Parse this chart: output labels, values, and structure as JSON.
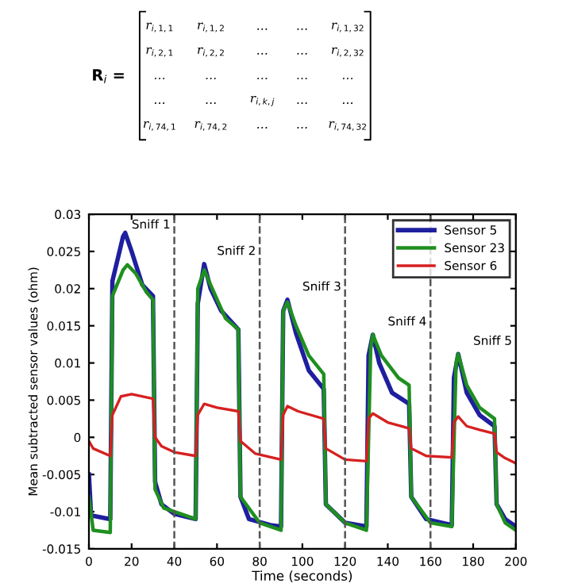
{
  "chart_data": {
    "type": "line",
    "xlabel": "Time (seconds)",
    "ylabel": "Mean subtracted sensor values (ohm)",
    "xlim": [
      0,
      200
    ],
    "xticks": [
      0,
      20,
      40,
      60,
      80,
      100,
      120,
      140,
      160,
      180,
      200
    ],
    "ylim": [
      -0.015,
      0.03
    ],
    "yticks": [
      -0.015,
      -0.01,
      -0.005,
      0,
      0.005,
      0.01,
      0.015,
      0.02,
      0.025,
      0.03
    ],
    "grid": false,
    "legend": "top right",
    "line_style": "solid",
    "series": [
      {
        "name": "Sensor 5",
        "color": "#1f1f9f",
        "x": [
          0,
          1,
          10,
          11,
          16,
          17,
          20,
          25,
          30,
          31,
          34,
          40,
          50,
          51,
          54,
          57,
          62,
          70,
          71,
          75,
          85,
          90,
          91,
          93,
          97,
          103,
          110,
          111,
          120,
          130,
          131,
          133,
          136,
          142,
          150,
          151,
          158,
          170,
          171,
          173,
          177,
          183,
          190,
          191,
          195,
          200
        ],
        "values": [
          -0.005,
          -0.0105,
          -0.011,
          0.021,
          0.027,
          0.0275,
          0.025,
          0.0205,
          0.019,
          -0.006,
          -0.009,
          -0.0103,
          -0.011,
          0.018,
          0.0233,
          0.02,
          0.017,
          0.0145,
          -0.008,
          -0.011,
          -0.0118,
          -0.012,
          0.017,
          0.0185,
          0.014,
          0.009,
          0.0065,
          -0.009,
          -0.0115,
          -0.012,
          0.011,
          0.0138,
          0.01,
          0.006,
          0.0045,
          -0.008,
          -0.011,
          -0.0118,
          0.008,
          0.0112,
          0.006,
          0.003,
          0.0015,
          -0.009,
          -0.011,
          -0.012
        ]
      },
      {
        "name": "Sensor 23",
        "color": "#1f8f1f",
        "x": [
          0,
          2,
          10,
          11,
          16,
          18,
          22,
          27,
          30,
          31,
          35,
          45,
          50,
          51,
          54,
          57,
          64,
          70,
          71,
          80,
          90,
          91,
          93,
          97,
          103,
          110,
          111,
          120,
          130,
          132,
          133,
          137,
          145,
          150,
          151,
          160,
          170,
          172,
          173,
          177,
          183,
          190,
          191,
          195,
          200
        ],
        "values": [
          -0.008,
          -0.0125,
          -0.0128,
          0.019,
          0.0225,
          0.0232,
          0.022,
          0.0195,
          0.0185,
          -0.007,
          -0.0095,
          -0.0105,
          -0.011,
          0.02,
          0.0225,
          0.0205,
          0.016,
          0.0145,
          -0.008,
          -0.0115,
          -0.0125,
          0.017,
          0.0182,
          0.015,
          0.011,
          0.0085,
          -0.009,
          -0.0115,
          -0.0125,
          0.012,
          0.0138,
          0.011,
          0.008,
          0.007,
          -0.008,
          -0.0115,
          -0.012,
          0.01,
          0.0112,
          0.007,
          0.004,
          0.0025,
          -0.009,
          -0.0115,
          -0.0125
        ]
      },
      {
        "name": "Sensor 6",
        "color": "#d62020",
        "x": [
          0,
          2,
          10,
          11,
          15,
          20,
          30,
          31,
          34,
          40,
          50,
          51,
          54,
          60,
          70,
          71,
          78,
          90,
          91,
          93,
          98,
          110,
          111,
          120,
          130,
          131,
          133,
          140,
          150,
          151,
          158,
          170,
          171,
          173,
          177,
          183,
          190,
          191,
          195,
          200
        ],
        "values": [
          -0.0005,
          -0.0015,
          -0.0025,
          0.003,
          0.0055,
          0.0058,
          0.0052,
          0.0,
          -0.0012,
          -0.002,
          -0.0025,
          0.003,
          0.0045,
          0.004,
          0.0035,
          -0.0005,
          -0.0022,
          -0.003,
          0.003,
          0.0042,
          0.0035,
          0.0025,
          -0.0015,
          -0.003,
          -0.0032,
          0.0025,
          0.0032,
          0.002,
          0.0012,
          -0.0015,
          -0.0025,
          -0.0027,
          0.002,
          0.0028,
          0.0015,
          0.001,
          0.0005,
          -0.002,
          -0.0028,
          -0.0035
        ]
      }
    ],
    "ref_lines": [
      {
        "axis": "x",
        "value": 40,
        "color": "#555555",
        "line_style": "dashed"
      },
      {
        "axis": "x",
        "value": 80,
        "color": "#555555",
        "line_style": "dashed"
      },
      {
        "axis": "x",
        "value": 120,
        "color": "#555555",
        "line_style": "dashed"
      },
      {
        "axis": "x",
        "value": 160,
        "color": "#555555",
        "line_style": "dashed"
      }
    ],
    "annotations": [
      "Sniff 1",
      "Sniff 2",
      "Sniff 3",
      "Sniff 4",
      "Sniff 5",
      "R$_{i}$ =",
      "r$_{i,1,1}$",
      "r$_{i,1,2}$",
      "…",
      "…",
      "r$_{i,1,32}$",
      "r$_{i,2,1}$",
      "r$_{i,2,2}$",
      "…",
      "…",
      "r$_{i,2,32}$",
      "…",
      "…",
      "…",
      "…",
      "…",
      "…",
      "…",
      "r$_{i,k,j}$",
      "…",
      "…",
      "r$_{i,74,1}$",
      "r$_{i,74,2}$",
      "…",
      "…",
      "r$_{i,74,32}$"
    ]
  }
}
